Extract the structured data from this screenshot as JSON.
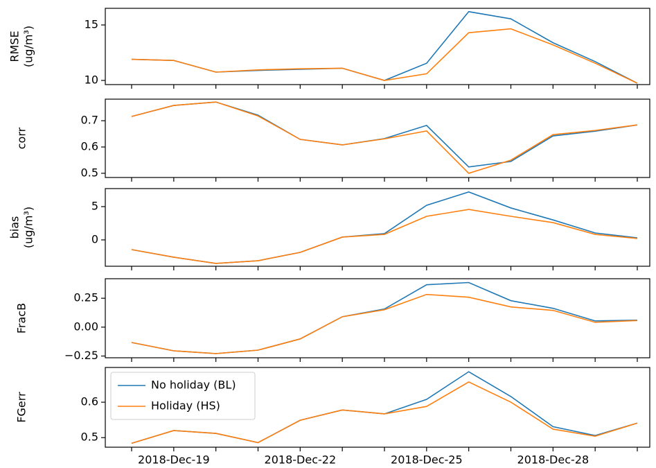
{
  "chart_data": [
    {
      "type": "line",
      "ylabel": [
        "RMSE",
        "(ug/m³)"
      ],
      "ylim": [
        9.625,
        16.5
      ],
      "yticks": [
        10,
        15
      ],
      "series": [
        {
          "color": "#1f77b4",
          "values": [
            11.9,
            11.8,
            10.75,
            10.9,
            11.0,
            11.1,
            10.0,
            11.55,
            16.2,
            15.55,
            13.4,
            11.7,
            9.75
          ]
        },
        {
          "color": "#ff7f0e",
          "values": [
            11.9,
            11.8,
            10.75,
            10.95,
            11.05,
            11.1,
            10.0,
            10.6,
            14.3,
            14.65,
            13.2,
            11.55,
            9.75
          ]
        }
      ]
    },
    {
      "type": "line",
      "ylabel": [
        "corr"
      ],
      "ylim": [
        0.484,
        0.782
      ],
      "yticks": [
        0.5,
        0.6,
        0.7
      ],
      "series": [
        {
          "color": "#1f77b4",
          "values": [
            0.716,
            0.758,
            0.771,
            0.721,
            0.629,
            0.608,
            0.632,
            0.682,
            0.524,
            0.545,
            0.642,
            0.66,
            0.684
          ]
        },
        {
          "color": "#ff7f0e",
          "values": [
            0.716,
            0.758,
            0.771,
            0.718,
            0.629,
            0.608,
            0.631,
            0.661,
            0.5,
            0.55,
            0.647,
            0.663,
            0.684
          ]
        }
      ]
    },
    {
      "type": "line",
      "ylabel": [
        "bias",
        "(ug/m³)"
      ],
      "ylim": [
        -3.96,
        7.71
      ],
      "yticks": [
        0,
        5
      ],
      "series": [
        {
          "color": "#1f77b4",
          "values": [
            -1.46,
            -2.6,
            -3.54,
            -3.13,
            -1.88,
            0.42,
            0.94,
            5.2,
            7.2,
            4.8,
            3.0,
            1.04,
            0.31
          ]
        },
        {
          "color": "#ff7f0e",
          "values": [
            -1.46,
            -2.6,
            -3.54,
            -3.13,
            -1.88,
            0.42,
            0.83,
            3.54,
            4.58,
            3.54,
            2.6,
            0.83,
            0.21
          ]
        }
      ]
    },
    {
      "type": "line",
      "ylabel": [
        "FracB"
      ],
      "ylim": [
        -0.265,
        0.419
      ],
      "yticks": [
        {
          "value": -0.25,
          "label": "−0.25"
        },
        {
          "value": 0,
          "label": "0.00"
        },
        0.25
      ],
      "series": [
        {
          "color": "#1f77b4",
          "values": [
            -0.133,
            -0.205,
            -0.229,
            -0.199,
            -0.102,
            0.09,
            0.157,
            0.367,
            0.386,
            0.229,
            0.163,
            0.054,
            0.06
          ]
        },
        {
          "color": "#ff7f0e",
          "values": [
            -0.133,
            -0.205,
            -0.229,
            -0.199,
            -0.102,
            0.09,
            0.151,
            0.283,
            0.259,
            0.175,
            0.145,
            0.042,
            0.057
          ]
        }
      ]
    },
    {
      "type": "line",
      "ylabel": [
        "FGerr"
      ],
      "ylim": [
        0.473,
        0.698
      ],
      "yticks": [
        0.5,
        0.6
      ],
      "categories": [
        null,
        "2018-Dec-19",
        null,
        null,
        "2018-Dec-22",
        null,
        null,
        "2018-Dec-25",
        null,
        null,
        "2018-Dec-28",
        null,
        null
      ],
      "legend": "upper left",
      "series": [
        {
          "name": "No holiday (BL)",
          "color": "#1f77b4",
          "values": [
            0.484,
            0.52,
            0.512,
            0.486,
            0.549,
            0.578,
            0.567,
            0.608,
            0.686,
            0.616,
            0.531,
            0.506,
            0.541
          ]
        },
        {
          "name": "Holiday (HS)",
          "color": "#ff7f0e",
          "values": [
            0.484,
            0.52,
            0.512,
            0.486,
            0.549,
            0.578,
            0.567,
            0.588,
            0.657,
            0.6,
            0.524,
            0.504,
            0.541
          ]
        }
      ]
    }
  ]
}
